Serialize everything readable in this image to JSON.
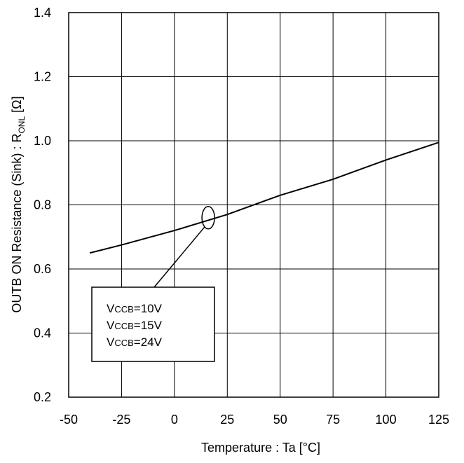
{
  "chart_data": {
    "type": "line",
    "xlabel": "Temperature : Ta [°C]",
    "ylabel": {
      "prefix": "OUTB ON Resistance (Sink) : R",
      "subscript": "ONL",
      "suffix": " [Ω]"
    },
    "xlim": [
      -50,
      125
    ],
    "ylim": [
      0.2,
      1.4
    ],
    "xticks": [
      -50,
      -25,
      0,
      25,
      50,
      75,
      100,
      125
    ],
    "xtick_labels": [
      "-50",
      "-25",
      "0",
      "25",
      "50",
      "75",
      "100",
      "125"
    ],
    "yticks": [
      0.2,
      0.4,
      0.6,
      0.8,
      1.0,
      1.2,
      1.4
    ],
    "ytick_labels": [
      "0.2",
      "0.4",
      "0.6",
      "0.8",
      "1.0",
      "1.2",
      "1.4"
    ],
    "grid": true,
    "series": [
      {
        "x": [
          -40,
          -25,
          0,
          25,
          50,
          75,
          100,
          125
        ],
        "y": [
          0.65,
          0.675,
          0.72,
          0.77,
          0.83,
          0.88,
          0.94,
          0.995
        ]
      }
    ],
    "annotation": {
      "ellipse_at": {
        "x": 16,
        "y": 0.76
      },
      "legend_lines": [
        {
          "main": "V",
          "sub": "CCB",
          "rest": "=10V"
        },
        {
          "main": "V",
          "sub": "CCB",
          "rest": "=15V"
        },
        {
          "main": "V",
          "sub": "CCB",
          "rest": "=24V"
        }
      ]
    }
  }
}
